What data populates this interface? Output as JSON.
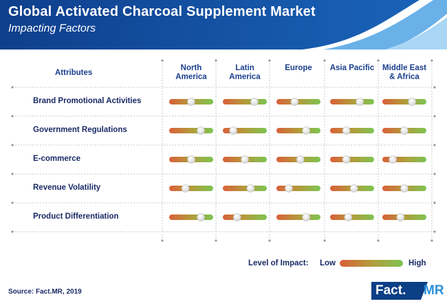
{
  "header": {
    "title": "Global Activated Charcoal Supplement Market",
    "subtitle": "Impacting Factors"
  },
  "chart_data": {
    "type": "table",
    "row_header": "Attributes",
    "columns": [
      [
        "North",
        "America"
      ],
      [
        "Latin",
        "America"
      ],
      [
        "Europe"
      ],
      [
        "Asia Pacific"
      ],
      [
        "Middle East",
        "& Africa"
      ]
    ],
    "rows": [
      {
        "label": "Brand Promotional Activities",
        "impact": [
          0.5,
          0.75,
          0.4,
          0.7,
          0.7
        ]
      },
      {
        "label": "Government Regulations",
        "impact": [
          0.75,
          0.2,
          0.7,
          0.35,
          0.5
        ]
      },
      {
        "label": "E-commerce",
        "impact": [
          0.5,
          0.5,
          0.55,
          0.35,
          0.2
        ]
      },
      {
        "label": "Revenue Volatility",
        "impact": [
          0.35,
          0.65,
          0.25,
          0.55,
          0.5
        ]
      },
      {
        "label": "Product Differentiation",
        "impact": [
          0.75,
          0.3,
          0.7,
          0.4,
          0.4
        ]
      }
    ],
    "scale": {
      "label": "Level of Impact:",
      "min_label": "Low",
      "max_label": "High",
      "range": [
        0,
        1
      ]
    },
    "colors": {
      "low": "#d9603a",
      "mid": "#b39b3a",
      "high": "#7ec452"
    }
  },
  "footer": {
    "source": "Source: Fact.MR, 2019",
    "logo_left": "Fact.",
    "logo_right": "MR"
  }
}
